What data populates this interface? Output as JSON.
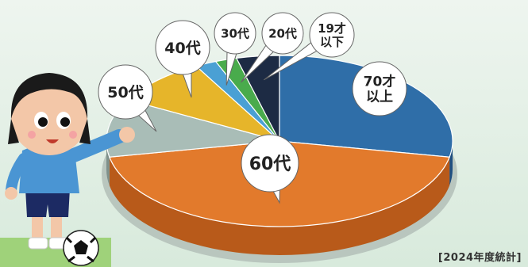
{
  "chart_data": {
    "type": "pie",
    "categories": [
      "70才以上",
      "60代",
      "50代",
      "40代",
      "30代",
      "20代",
      "19才以下"
    ],
    "values": [
      28,
      44,
      11,
      9,
      2,
      2,
      4
    ],
    "label_lines": [
      [
        "70才",
        "以上"
      ],
      [
        "60代"
      ],
      [
        "50代"
      ],
      [
        "40代"
      ],
      [
        "30代"
      ],
      [
        "20代"
      ],
      [
        "19才",
        "以下"
      ]
    ],
    "colors": [
      "#2f6ea8",
      "#e27a2c",
      "#a9bdb7",
      "#e6b52a",
      "#4aa0d4",
      "#49ab4c",
      "#1d2b44"
    ],
    "side_colors": [
      "#1f4f80",
      "#b85a1a",
      "#7f918b",
      "#b88c15",
      "#2f7aa8",
      "#2f7f33",
      "#0f1a2c"
    ],
    "footnote": "[2024年度統計]"
  },
  "footer": "[2024年度統計]"
}
